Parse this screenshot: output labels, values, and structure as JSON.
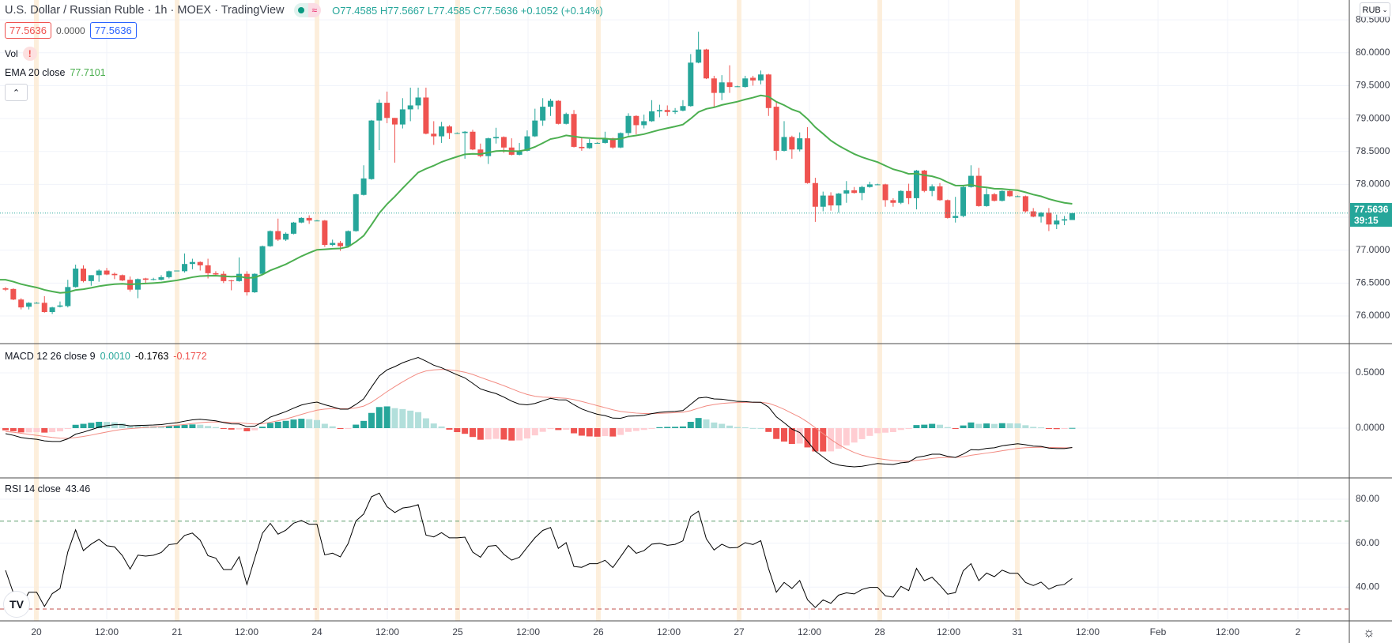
{
  "header": {
    "title": "U.S. Dollar / Russian Ruble · 1h · MOEX · TradingView",
    "market_status": "market-open",
    "data_status_glyph": "≈",
    "ohlc": {
      "o_label": "O",
      "o": "77.4585",
      "h_label": "H",
      "h": "77.5667",
      "l_label": "L",
      "l": "77.4585",
      "c_label": "C",
      "c": "77.5636",
      "change": "+0.1052 (+0.14%)"
    }
  },
  "quote_boxes": {
    "sell": "77.5636",
    "spread": "0.0000",
    "buy": "77.5636"
  },
  "indicators": {
    "vol_label": "Vol",
    "vol_warning": "!",
    "ema_label": "EMA 20 close",
    "ema_value": "77.7101",
    "macd_label": "MACD 12 26 close 9",
    "macd_hist": "0.0010",
    "macd_value": "-0.1763",
    "macd_signal": "-0.1772",
    "rsi_label": "RSI 14 close",
    "rsi_value": "43.46"
  },
  "axis": {
    "currency": "RUB",
    "price_ticks": [
      "80.5000",
      "80.0000",
      "79.5000",
      "79.0000",
      "78.5000",
      "78.0000",
      "77.0000",
      "76.5000",
      "76.0000"
    ],
    "macd_ticks": [
      "0.5000",
      "0.0000"
    ],
    "rsi_ticks": [
      "80.00",
      "60.00",
      "40.00"
    ],
    "last_price": "77.5636",
    "countdown": "39:15",
    "time_labels": [
      "20",
      "12:00",
      "21",
      "12:00",
      "24",
      "12:00",
      "25",
      "12:00",
      "26",
      "12:00",
      "27",
      "12:00",
      "28",
      "12:00",
      "31",
      "12:00",
      "Feb",
      "12:00",
      "2"
    ]
  },
  "colors": {
    "up": "#26a69a",
    "down": "#ef5350",
    "ema": "#4caf50",
    "macd": "#000000",
    "signal": "#f28b82",
    "hist_up_strong": "#26a69a",
    "hist_up_weak": "#b2dfdb",
    "hist_down_strong": "#ef5350",
    "hist_down_weak": "#ffcdd2",
    "session": "#fdebd3",
    "grid": "#f0f3fa"
  },
  "chart_data": {
    "type": "candlestick",
    "interval": "1h",
    "ylim": [
      75.6,
      80.7
    ],
    "ema": {
      "period": 20,
      "start": 76.55
    },
    "macd": {
      "fast": 12,
      "slow": 26,
      "signal": 9
    },
    "rsi": {
      "period": 14,
      "upper": 70,
      "lower": 30,
      "ylim": [
        25,
        88
      ]
    },
    "ohlc": [
      [
        76.42,
        76.44,
        76.38,
        76.4
      ],
      [
        76.41,
        76.42,
        76.24,
        76.25
      ],
      [
        76.25,
        76.27,
        76.1,
        76.13
      ],
      [
        76.14,
        76.21,
        76.1,
        76.2
      ],
      [
        76.2,
        76.21,
        76.19,
        76.2
      ],
      [
        76.2,
        76.3,
        76.05,
        76.06
      ],
      [
        76.06,
        76.14,
        76.03,
        76.13
      ],
      [
        76.14,
        76.22,
        76.13,
        76.16
      ],
      [
        76.15,
        76.55,
        76.13,
        76.44
      ],
      [
        76.44,
        76.78,
        76.43,
        76.72
      ],
      [
        76.72,
        76.77,
        76.51,
        76.53
      ],
      [
        76.53,
        76.62,
        76.46,
        76.62
      ],
      [
        76.62,
        76.71,
        76.52,
        76.69
      ],
      [
        76.69,
        76.73,
        76.62,
        76.63
      ],
      [
        76.64,
        76.66,
        76.56,
        76.62
      ],
      [
        76.62,
        76.63,
        76.53,
        76.54
      ],
      [
        76.55,
        76.6,
        76.37,
        76.4
      ],
      [
        76.4,
        76.57,
        76.27,
        76.56
      ],
      [
        76.57,
        76.58,
        76.5,
        76.55
      ],
      [
        76.55,
        76.58,
        76.54,
        76.56
      ],
      [
        76.55,
        76.62,
        76.54,
        76.59
      ],
      [
        76.59,
        76.69,
        76.57,
        76.68
      ],
      [
        76.68,
        76.69,
        76.68,
        76.69
      ],
      [
        76.68,
        76.95,
        76.66,
        76.79
      ],
      [
        76.79,
        76.87,
        76.71,
        76.82
      ],
      [
        76.82,
        76.83,
        76.69,
        76.77
      ],
      [
        76.77,
        76.87,
        76.57,
        76.65
      ],
      [
        76.65,
        76.68,
        76.62,
        76.63
      ],
      [
        76.64,
        76.68,
        76.5,
        76.53
      ],
      [
        76.54,
        76.55,
        76.39,
        76.53
      ],
      [
        76.53,
        76.89,
        76.52,
        76.64
      ],
      [
        76.64,
        76.68,
        76.31,
        76.36
      ],
      [
        76.36,
        76.65,
        76.35,
        76.64
      ],
      [
        76.64,
        77.07,
        76.63,
        77.06
      ],
      [
        77.06,
        77.3,
        77.05,
        77.29
      ],
      [
        77.29,
        77.48,
        77.14,
        77.16
      ],
      [
        77.16,
        77.27,
        77.14,
        77.25
      ],
      [
        77.25,
        77.43,
        77.24,
        77.42
      ],
      [
        77.42,
        77.5,
        77.41,
        77.49
      ],
      [
        77.49,
        77.53,
        77.4,
        77.45
      ],
      [
        77.45,
        77.46,
        77.45,
        77.45
      ],
      [
        77.45,
        77.46,
        77.05,
        77.08
      ],
      [
        77.08,
        77.16,
        77.06,
        77.11
      ],
      [
        77.11,
        77.14,
        76.99,
        77.06
      ],
      [
        77.06,
        77.3,
        77.05,
        77.29
      ],
      [
        77.29,
        77.86,
        77.28,
        77.85
      ],
      [
        77.84,
        78.29,
        77.83,
        78.09
      ],
      [
        78.08,
        78.98,
        78.07,
        78.97
      ],
      [
        78.97,
        79.29,
        78.52,
        79.24
      ],
      [
        79.24,
        79.41,
        78.93,
        79.01
      ],
      [
        79.01,
        79.01,
        78.33,
        78.91
      ],
      [
        78.91,
        79.31,
        78.85,
        79.14
      ],
      [
        79.14,
        79.47,
        78.96,
        79.2
      ],
      [
        79.2,
        79.47,
        79.14,
        79.32
      ],
      [
        79.32,
        79.47,
        78.76,
        78.77
      ],
      [
        78.77,
        78.96,
        78.6,
        78.73
      ],
      [
        78.73,
        78.95,
        78.63,
        78.88
      ],
      [
        78.88,
        78.9,
        78.69,
        78.78
      ],
      [
        78.78,
        78.79,
        78.77,
        78.78
      ],
      [
        78.78,
        78.81,
        78.39,
        78.8
      ],
      [
        78.8,
        78.83,
        78.52,
        78.53
      ],
      [
        78.53,
        78.62,
        78.41,
        78.43
      ],
      [
        78.43,
        78.71,
        78.31,
        78.7
      ],
      [
        78.7,
        78.86,
        78.62,
        78.72
      ],
      [
        78.72,
        78.73,
        78.48,
        78.56
      ],
      [
        78.56,
        78.7,
        78.44,
        78.45
      ],
      [
        78.45,
        78.63,
        78.44,
        78.51
      ],
      [
        78.51,
        78.82,
        78.5,
        78.73
      ],
      [
        78.73,
        79.15,
        78.72,
        78.97
      ],
      [
        78.97,
        79.31,
        78.89,
        79.18
      ],
      [
        79.18,
        79.3,
        79.04,
        79.27
      ],
      [
        79.27,
        79.28,
        78.91,
        78.92
      ],
      [
        78.92,
        79.09,
        78.91,
        79.07
      ],
      [
        79.07,
        79.13,
        78.56,
        78.57
      ],
      [
        78.57,
        78.72,
        78.51,
        78.55
      ],
      [
        78.55,
        78.69,
        78.54,
        78.63
      ],
      [
        78.63,
        78.64,
        78.62,
        78.63
      ],
      [
        78.63,
        78.8,
        78.62,
        78.7
      ],
      [
        78.7,
        78.71,
        78.54,
        78.56
      ],
      [
        78.56,
        78.79,
        78.55,
        78.78
      ],
      [
        78.78,
        79.08,
        78.74,
        79.04
      ],
      [
        79.04,
        79.05,
        78.76,
        78.9
      ],
      [
        78.9,
        79.06,
        78.85,
        78.96
      ],
      [
        78.96,
        79.28,
        78.95,
        79.11
      ],
      [
        79.11,
        79.21,
        79.02,
        79.13
      ],
      [
        79.13,
        79.2,
        79.04,
        79.1
      ],
      [
        79.1,
        79.16,
        79.07,
        79.12
      ],
      [
        79.12,
        79.28,
        79.11,
        79.19
      ],
      [
        79.19,
        79.98,
        79.18,
        79.85
      ],
      [
        79.85,
        80.32,
        79.84,
        80.05
      ],
      [
        80.05,
        80.06,
        79.6,
        79.61
      ],
      [
        79.61,
        79.65,
        79.17,
        79.39
      ],
      [
        79.39,
        79.66,
        79.28,
        79.55
      ],
      [
        79.55,
        79.81,
        79.39,
        79.48
      ],
      [
        79.49,
        79.5,
        79.48,
        79.49
      ],
      [
        79.48,
        79.65,
        79.47,
        79.61
      ],
      [
        79.62,
        79.65,
        79.5,
        79.58
      ],
      [
        79.58,
        79.73,
        79.52,
        79.67
      ],
      [
        79.67,
        79.68,
        79.04,
        79.16
      ],
      [
        79.18,
        79.25,
        78.37,
        78.51
      ],
      [
        78.51,
        78.96,
        78.5,
        78.72
      ],
      [
        78.72,
        78.74,
        78.39,
        78.53
      ],
      [
        78.53,
        78.79,
        78.5,
        78.7
      ],
      [
        78.7,
        78.87,
        78.01,
        78.02
      ],
      [
        78.02,
        78.1,
        77.43,
        77.66
      ],
      [
        77.66,
        77.89,
        77.59,
        77.83
      ],
      [
        77.83,
        77.88,
        77.6,
        77.68
      ],
      [
        77.68,
        77.87,
        77.57,
        77.86
      ],
      [
        77.86,
        78.05,
        77.72,
        77.91
      ],
      [
        77.91,
        77.96,
        77.86,
        77.87
      ],
      [
        77.87,
        77.98,
        77.76,
        77.96
      ],
      [
        77.96,
        78.04,
        77.95,
        78.0
      ],
      [
        78.0,
        78.01,
        77.99,
        78.0
      ],
      [
        78.0,
        78.01,
        77.66,
        77.76
      ],
      [
        77.76,
        77.79,
        77.66,
        77.72
      ],
      [
        77.72,
        77.91,
        77.7,
        77.9
      ],
      [
        77.9,
        78.01,
        77.7,
        77.79
      ],
      [
        77.79,
        78.22,
        77.62,
        78.21
      ],
      [
        78.21,
        78.22,
        77.88,
        77.9
      ],
      [
        77.9,
        78.0,
        77.82,
        77.97
      ],
      [
        77.97,
        78.02,
        77.75,
        77.76
      ],
      [
        77.76,
        77.77,
        77.48,
        77.49
      ],
      [
        77.49,
        77.81,
        77.42,
        77.52
      ],
      [
        77.52,
        77.97,
        77.5,
        77.96
      ],
      [
        77.96,
        78.29,
        77.95,
        78.13
      ],
      [
        78.13,
        78.25,
        77.66,
        77.67
      ],
      [
        77.67,
        77.94,
        77.66,
        77.85
      ],
      [
        77.85,
        77.87,
        77.74,
        77.75
      ],
      [
        77.75,
        77.91,
        77.74,
        77.9
      ],
      [
        77.9,
        77.91,
        77.81,
        77.82
      ],
      [
        77.82,
        77.83,
        77.81,
        77.82
      ],
      [
        77.82,
        77.83,
        77.57,
        77.59
      ],
      [
        77.59,
        77.64,
        77.5,
        77.51
      ],
      [
        77.51,
        77.58,
        77.42,
        77.57
      ],
      [
        77.57,
        77.64,
        77.29,
        77.39
      ],
      [
        77.39,
        77.54,
        77.32,
        77.45
      ],
      [
        77.45,
        77.52,
        77.38,
        77.47
      ],
      [
        77.4585,
        77.5667,
        77.4585,
        77.5636
      ]
    ]
  }
}
